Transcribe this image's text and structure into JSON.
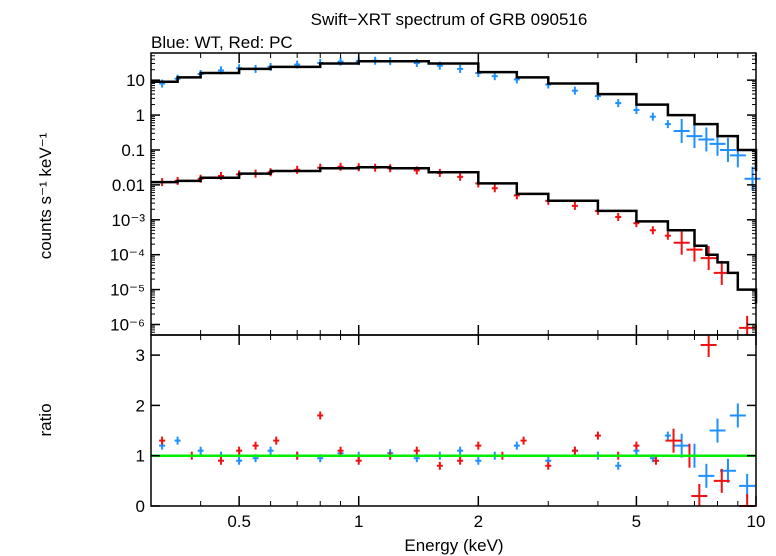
{
  "chart_data": {
    "type": "scatter",
    "title": "Swift−XRT spectrum of GRB 090516",
    "subtitle": "Blue: WT, Red: PC",
    "xlabel": "Energy (keV)",
    "xscale": "log",
    "xlim": [
      0.3,
      10
    ],
    "x_ticks": [
      {
        "value": 0.5,
        "label": "0.5"
      },
      {
        "value": 1,
        "label": "1"
      },
      {
        "value": 2,
        "label": "2"
      },
      {
        "value": 5,
        "label": "5"
      },
      {
        "value": 10,
        "label": "10"
      }
    ],
    "colors": {
      "wt": "#1e90ff",
      "pc": "#ee1111",
      "model": "#000000",
      "unity": "#00ee00"
    },
    "panels": [
      {
        "name": "spectrum",
        "ylabel": "counts s⁻¹ keV⁻¹",
        "yscale": "log",
        "ylim": [
          5e-07,
          60
        ],
        "y_ticks": [
          {
            "value": 10,
            "label": "10"
          },
          {
            "value": 1,
            "label": "1"
          },
          {
            "value": 0.1,
            "label": "0.1"
          },
          {
            "value": 0.01,
            "label": "0.01"
          },
          {
            "value": 0.001,
            "label": "10⁻³"
          },
          {
            "value": 0.0001,
            "label": "10⁻⁴"
          },
          {
            "value": 1e-05,
            "label": "10⁻⁵"
          },
          {
            "value": 1e-06,
            "label": "10⁻⁶"
          }
        ],
        "series": [
          {
            "key": "wt",
            "x": [
              0.32,
              0.35,
              0.4,
              0.45,
              0.5,
              0.55,
              0.6,
              0.7,
              0.8,
              0.9,
              1.0,
              1.1,
              1.2,
              1.4,
              1.6,
              1.8,
              2.0,
              2.2,
              2.5,
              3.0,
              3.5,
              4.0,
              4.5,
              5.0,
              5.5,
              6.0,
              6.5,
              7.0,
              7.5,
              8.0,
              8.5,
              9.0,
              9.8
            ],
            "y": [
              8,
              11,
              15,
              19,
              22,
              21,
              24,
              28,
              31,
              34,
              35,
              36,
              35,
              31,
              26,
              21,
              16,
              13,
              10.5,
              7.5,
              5,
              3.5,
              2.2,
              1.4,
              0.9,
              0.55,
              0.35,
              0.25,
              0.2,
              0.15,
              0.1,
              0.07,
              0.015
            ]
          },
          {
            "key": "pc",
            "x": [
              0.32,
              0.35,
              0.4,
              0.45,
              0.5,
              0.55,
              0.6,
              0.7,
              0.8,
              0.9,
              1.0,
              1.1,
              1.2,
              1.4,
              1.6,
              1.8,
              2.0,
              2.2,
              2.5,
              3.0,
              3.5,
              4.0,
              4.5,
              5.0,
              5.5,
              6.0,
              6.5,
              7.0,
              7.6,
              8.2,
              9.5
            ],
            "y": [
              0.012,
              0.013,
              0.015,
              0.018,
              0.02,
              0.021,
              0.023,
              0.027,
              0.031,
              0.033,
              0.032,
              0.031,
              0.03,
              0.026,
              0.022,
              0.017,
              0.011,
              0.008,
              0.005,
              0.0035,
              0.0025,
              0.0018,
              0.0012,
              0.0008,
              0.0005,
              0.00035,
              0.00022,
              0.00014,
              8e-05,
              3e-05,
              8e-07
            ]
          },
          {
            "key": "model",
            "x": [
              0.3,
              0.35,
              0.4,
              0.5,
              0.6,
              0.8,
              1.0,
              1.2,
              1.5,
              2.0,
              2.5,
              3.0,
              4.0,
              5.0,
              6.0,
              7.0,
              8.0,
              9.0,
              10.0
            ],
            "y": [
              9,
              12,
              16,
              21,
              24,
              30,
              35,
              35,
              30,
              17,
              12,
              8,
              4,
              2,
              1,
              0.55,
              0.25,
              0.1,
              0.025
            ]
          },
          {
            "key": "model",
            "x": [
              0.3,
              0.35,
              0.4,
              0.5,
              0.6,
              0.8,
              1.0,
              1.2,
              1.5,
              2.0,
              2.5,
              3.0,
              4.0,
              5.0,
              6.0,
              7.0,
              7.5,
              8.0,
              8.5,
              9.0,
              10.0
            ],
            "y": [
              0.012,
              0.013,
              0.016,
              0.021,
              0.025,
              0.03,
              0.032,
              0.03,
              0.023,
              0.011,
              0.0055,
              0.0035,
              0.0018,
              0.0009,
              0.0005,
              0.00018,
              0.0001,
              6e-05,
              3e-05,
              1e-05,
              4e-06
            ]
          }
        ]
      },
      {
        "name": "ratio",
        "ylabel": "ratio",
        "yscale": "linear",
        "ylim": [
          0,
          3.4
        ],
        "y_ticks": [
          {
            "value": 0,
            "label": "0"
          },
          {
            "value": 1,
            "label": "1"
          },
          {
            "value": 2,
            "label": "2"
          },
          {
            "value": 3,
            "label": "3"
          }
        ],
        "reference_line": 1,
        "series": [
          {
            "key": "wt",
            "x": [
              0.32,
              0.35,
              0.4,
              0.45,
              0.5,
              0.55,
              0.6,
              0.7,
              0.8,
              0.9,
              1.0,
              1.2,
              1.4,
              1.6,
              1.8,
              2.0,
              2.2,
              2.5,
              3.0,
              3.5,
              4.0,
              4.5,
              5.0,
              5.5,
              6.0,
              6.5,
              7.0,
              7.5,
              8.0,
              8.5,
              9.0,
              9.5
            ],
            "y": [
              1.2,
              1.3,
              1.1,
              1.0,
              0.9,
              0.95,
              1.1,
              1.0,
              0.95,
              1.05,
              1.0,
              1.05,
              0.95,
              1.0,
              1.1,
              0.9,
              1.0,
              1.2,
              0.9,
              1.1,
              1.0,
              0.8,
              1.1,
              0.95,
              1.4,
              1.2,
              1.0,
              0.6,
              1.5,
              0.7,
              1.8,
              0.4
            ]
          },
          {
            "key": "pc",
            "x": [
              0.32,
              0.38,
              0.45,
              0.5,
              0.55,
              0.62,
              0.7,
              0.8,
              0.9,
              1.0,
              1.2,
              1.4,
              1.6,
              1.8,
              2.0,
              2.3,
              2.6,
              3.0,
              3.5,
              4.0,
              4.5,
              5.0,
              5.6,
              6.2,
              6.8,
              7.2,
              7.6,
              8.2,
              9.5
            ],
            "y": [
              1.3,
              1.0,
              0.9,
              1.1,
              1.2,
              1.3,
              1.0,
              1.8,
              1.1,
              0.9,
              1.0,
              1.1,
              0.8,
              0.9,
              1.2,
              1.0,
              1.3,
              0.8,
              1.1,
              1.4,
              1.0,
              1.2,
              0.9,
              1.3,
              1.0,
              0.2,
              3.2,
              0.5,
              0.0
            ]
          }
        ]
      }
    ]
  }
}
